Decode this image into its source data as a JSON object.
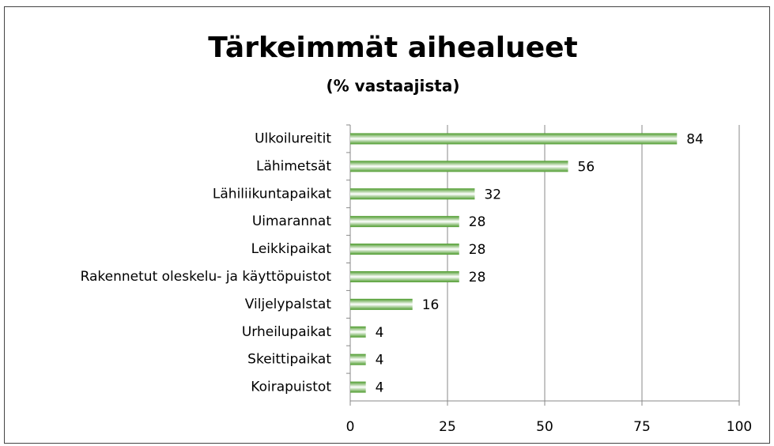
{
  "chart_data": {
    "type": "bar",
    "orientation": "horizontal",
    "title": "Tärkeimmät aihealueet",
    "subtitle": "(% vastaajista)",
    "categories": [
      "Ulkoilureitit",
      "Lähimetsät",
      "Lähiliikuntapaikat",
      "Uimarannat",
      "Leikkipaikat",
      "Rakennetut oleskelu- ja käyttöpuistot",
      "Viljelypalstat",
      "Urheilupaikat",
      "Skeittipaikat",
      "Koirapuistot"
    ],
    "values": [
      84,
      56,
      32,
      28,
      28,
      28,
      16,
      4,
      4,
      4
    ],
    "color": "#4b9a2a",
    "xlim": [
      0,
      100
    ],
    "xticks": [
      0,
      25,
      50,
      75,
      100
    ],
    "grid": true
  }
}
